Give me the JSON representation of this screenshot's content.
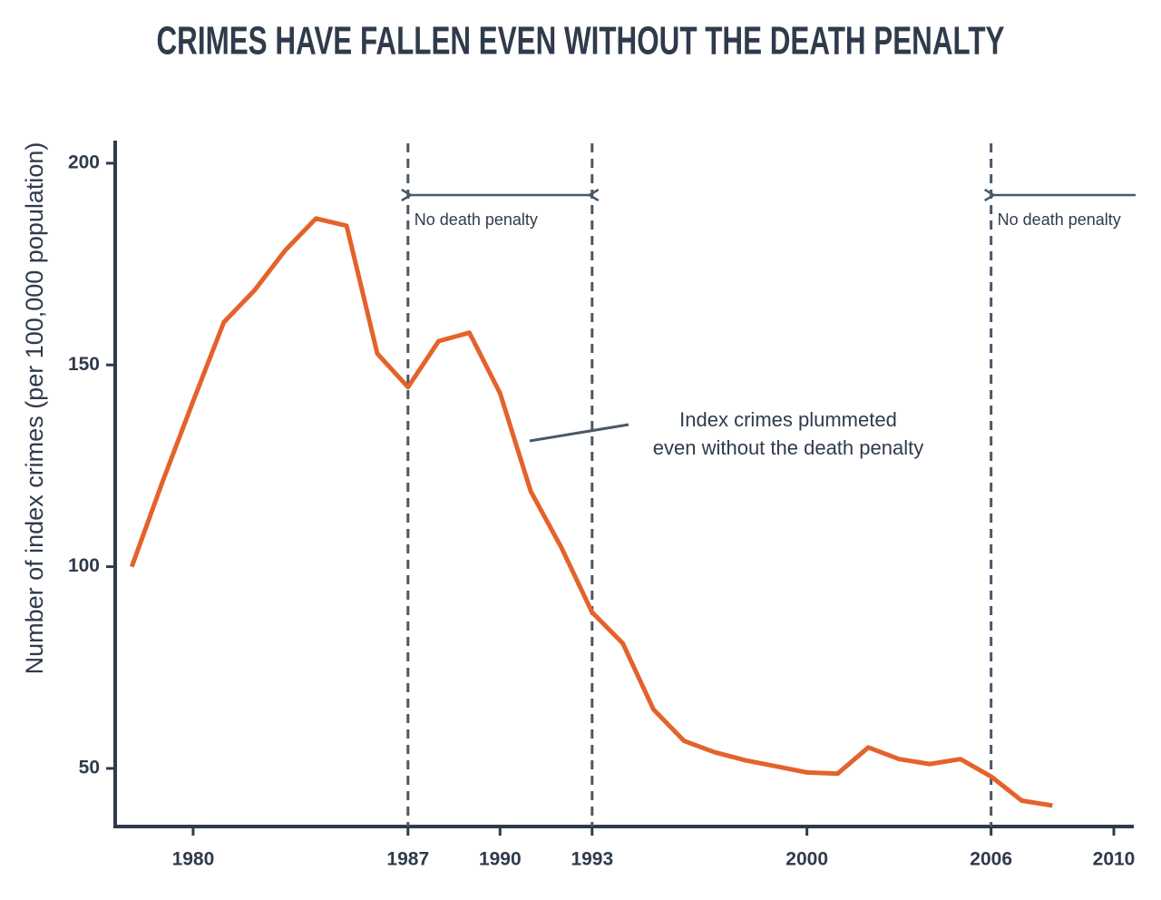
{
  "chart_data": {
    "type": "line",
    "title": "CRIMES HAVE FALLEN EVEN WITHOUT THE DEATH PENALTY",
    "y_label": "Number of index crimes (per 100,000 population)",
    "x": [
      1978,
      1979,
      1980,
      1981,
      1982,
      1983,
      1984,
      1985,
      1986,
      1987,
      1988,
      1989,
      1990,
      1991,
      1992,
      1993,
      1994,
      1995,
      1996,
      1997,
      1998,
      1999,
      2000,
      2001,
      2002,
      2003,
      2004,
      2005,
      2006,
      2007,
      2008
    ],
    "values": [
      100,
      121,
      141,
      160.6,
      168.5,
      178.4,
      186.3,
      184.5,
      152.8,
      144.5,
      155.9,
      158,
      143,
      118.7,
      104.7,
      88.7,
      81,
      64.6,
      56.8,
      54,
      52,
      50.5,
      49,
      48.7,
      55.2,
      52.3,
      51.1,
      52.3,
      48,
      42,
      40.8
    ],
    "color": "#e4622b",
    "xlim": [
      1977.46,
      2010.65
    ],
    "ylim": [
      35.6,
      205.6
    ],
    "xticks": [
      1980,
      1987,
      1990,
      1993,
      2000,
      2006,
      2010
    ],
    "yticks": [
      50,
      100,
      150,
      200
    ],
    "grid": false,
    "periods": [
      {
        "label": "No death penalty",
        "start": 1987,
        "end": 1993
      },
      {
        "label": "No death penalty",
        "start": 2006,
        "end": null
      }
    ],
    "callout": {
      "lines": [
        "Index crimes plummeted",
        "even without the death penalty"
      ]
    }
  }
}
